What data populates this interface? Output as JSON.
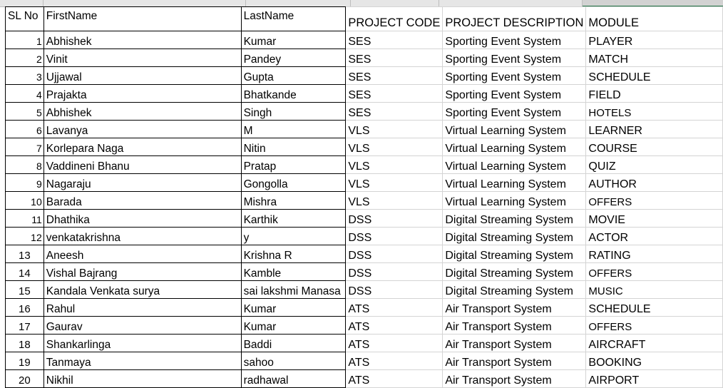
{
  "headers": {
    "sl_no": "SL No",
    "first_name": "FirstName",
    "last_name": "LastName",
    "project_code": "PROJECT CODE",
    "project_description": "PROJECT DESCRIPTION",
    "module": "MODULE"
  },
  "rows": [
    {
      "sl": "1",
      "first": "Abhishek",
      "last": "Kumar",
      "code": "SES",
      "desc": "Sporting Event System",
      "module": "PLAYER"
    },
    {
      "sl": "2",
      "first": "Vinit",
      "last": "Pandey",
      "code": "SES",
      "desc": "Sporting Event System",
      "module": "MATCH"
    },
    {
      "sl": "3",
      "first": "Ujjawal",
      "last": "Gupta",
      "code": "SES",
      "desc": "Sporting Event System",
      "module": "SCHEDULE"
    },
    {
      "sl": "4",
      "first": "Prajakta",
      "last": "Bhatkande",
      "code": "SES",
      "desc": "Sporting Event System",
      "module": "FIELD"
    },
    {
      "sl": "5",
      "first": "Abhishek",
      "last": "Singh",
      "code": "SES",
      "desc": "Sporting Event System",
      "module": "HOTELS"
    },
    {
      "sl": "6",
      "first": "Lavanya",
      "last": "M",
      "code": "VLS",
      "desc": "Virtual Learning System",
      "module": "LEARNER"
    },
    {
      "sl": "7",
      "first": "Korlepara Naga",
      "last": "Nitin",
      "code": "VLS",
      "desc": "Virtual Learning System",
      "module": "COURSE"
    },
    {
      "sl": "8",
      "first": "Vaddineni Bhanu",
      "last": "Pratap",
      "code": "VLS",
      "desc": "Virtual Learning System",
      "module": "QUIZ"
    },
    {
      "sl": "9",
      "first": "Nagaraju",
      "last": "Gongolla",
      "code": "VLS",
      "desc": "Virtual Learning System",
      "module": "AUTHOR"
    },
    {
      "sl": "10",
      "first": "Barada",
      "last": "Mishra",
      "code": "VLS",
      "desc": "Virtual Learning System",
      "module": "OFFERS"
    },
    {
      "sl": "11",
      "first": "Dhathika",
      "last": "Karthik",
      "code": "DSS",
      "desc": "Digital Streaming System",
      "module": "MOVIE"
    },
    {
      "sl": "12",
      "first": "venkatakrishna",
      "last": "y",
      "code": "DSS",
      "desc": "Digital Streaming System",
      "module": "ACTOR"
    },
    {
      "sl": "13",
      "first": "Aneesh",
      "last": "Krishna R",
      "code": "DSS",
      "desc": "Digital Streaming System",
      "module": "RATING"
    },
    {
      "sl": "14",
      "first": "Vishal Bajrang",
      "last": "Kamble",
      "code": "DSS",
      "desc": "Digital Streaming System",
      "module": "OFFERS"
    },
    {
      "sl": "15",
      "first": "Kandala Venkata surya",
      "last": "sai lakshmi Manasa",
      "code": "DSS",
      "desc": "Digital Streaming System",
      "module": "MUSIC"
    },
    {
      "sl": "16",
      "first": "Rahul",
      "last": "Kumar",
      "code": "ATS",
      "desc": "Air Transport System",
      "module": "SCHEDULE"
    },
    {
      "sl": "17",
      "first": "Gaurav",
      "last": "Kumar",
      "code": "ATS",
      "desc": "Air Transport System",
      "module": "OFFERS"
    },
    {
      "sl": "18",
      "first": "Shankarlinga",
      "last": "Baddi",
      "code": "ATS",
      "desc": "Air Transport System",
      "module": "AIRCRAFT"
    },
    {
      "sl": "19",
      "first": "Tanmaya",
      "last": "sahoo",
      "code": "ATS",
      "desc": "Air Transport System",
      "module": "BOOKING"
    },
    {
      "sl": "20",
      "first": "Nikhil",
      "last": "radhawal",
      "code": "ATS",
      "desc": "Air Transport System",
      "module": "AIRPORT"
    }
  ]
}
